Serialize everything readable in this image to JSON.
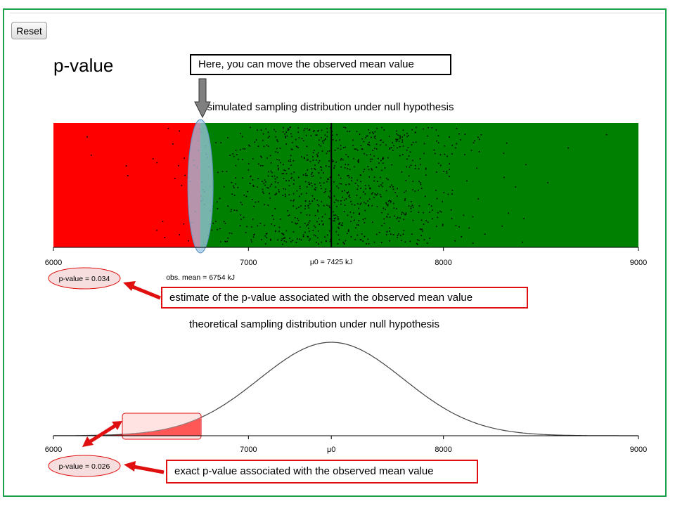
{
  "controls": {
    "reset_label": "Reset"
  },
  "page": {
    "title": "p-value"
  },
  "colors": {
    "rejection_region": "#ff0000",
    "acceptance_region": "#008000",
    "annotation_red": "#e01010",
    "ellipse_fill": "#f6dede",
    "highlight_ellipse": "#9ec6e6"
  },
  "chart_data": [
    {
      "type": "scatter",
      "title": "simulated sampling distribution under null hypothesis",
      "xlim": [
        6000,
        9000
      ],
      "x_ticks": [
        "6000",
        "7000",
        "8000",
        "9000"
      ],
      "mu0_label": "μ0 = 7425 kJ",
      "mu0": 7425,
      "observed_mean": 6754,
      "obs_mean_label": "obs. mean = 6754 kJ",
      "p_value_label": "p-value = 0.034",
      "points": {
        "n": 1000,
        "mean": 7425,
        "sd": 370
      }
    },
    {
      "type": "line",
      "title": "theoretical sampling distribution under null hypothesis",
      "xlim": [
        6000,
        9000
      ],
      "x_ticks": [
        "6000",
        "7000",
        "8000",
        "9000"
      ],
      "mu0_tick_label": "μ0",
      "mu0": 7425,
      "sd": 370,
      "observed_mean": 6754,
      "p_value_label": "p-value = 0.026"
    }
  ],
  "annotations": {
    "move_hint": "Here, you can move the observed mean value",
    "estimate_note": "estimate of the p-value associated with the observed mean value",
    "exact_note": "exact p-value associated with the observed mean value"
  }
}
